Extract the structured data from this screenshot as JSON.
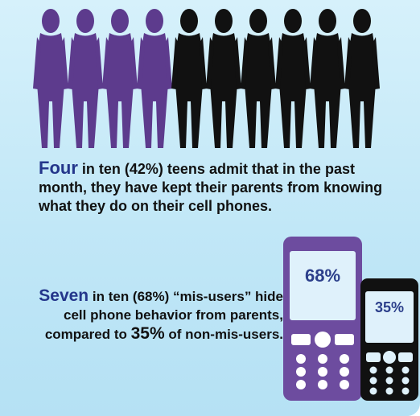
{
  "colors": {
    "mis_user_silhouette": "#5d3b8d",
    "other_silhouette": "#111111",
    "lead_text": "#24368b",
    "phone_purple": "#6d4c9f",
    "phone_black": "#111111",
    "background": "#c6e9f8"
  },
  "fact1": {
    "lead": "Four",
    "text": "in ten (42%) teens admit that in the past month, they have kept their parents from knowing what they do on their cell phones."
  },
  "fact2": {
    "lead": "Seven",
    "text": "in ten (68%) “mis-users” hide cell phone behavior from parents, compared to",
    "value": "35%",
    "tail": "of non-mis-users."
  },
  "chart_data": {
    "type": "pictogram",
    "title": "",
    "series": [
      {
        "name": "",
        "highlighted": 4,
        "total": 10,
        "percent": 42
      }
    ],
    "phones": [
      {
        "name": "",
        "value": 68
      },
      {
        "name": "",
        "value": 35
      }
    ],
    "labels": {
      "phone_1": "68%",
      "phone_2": "35%"
    }
  }
}
